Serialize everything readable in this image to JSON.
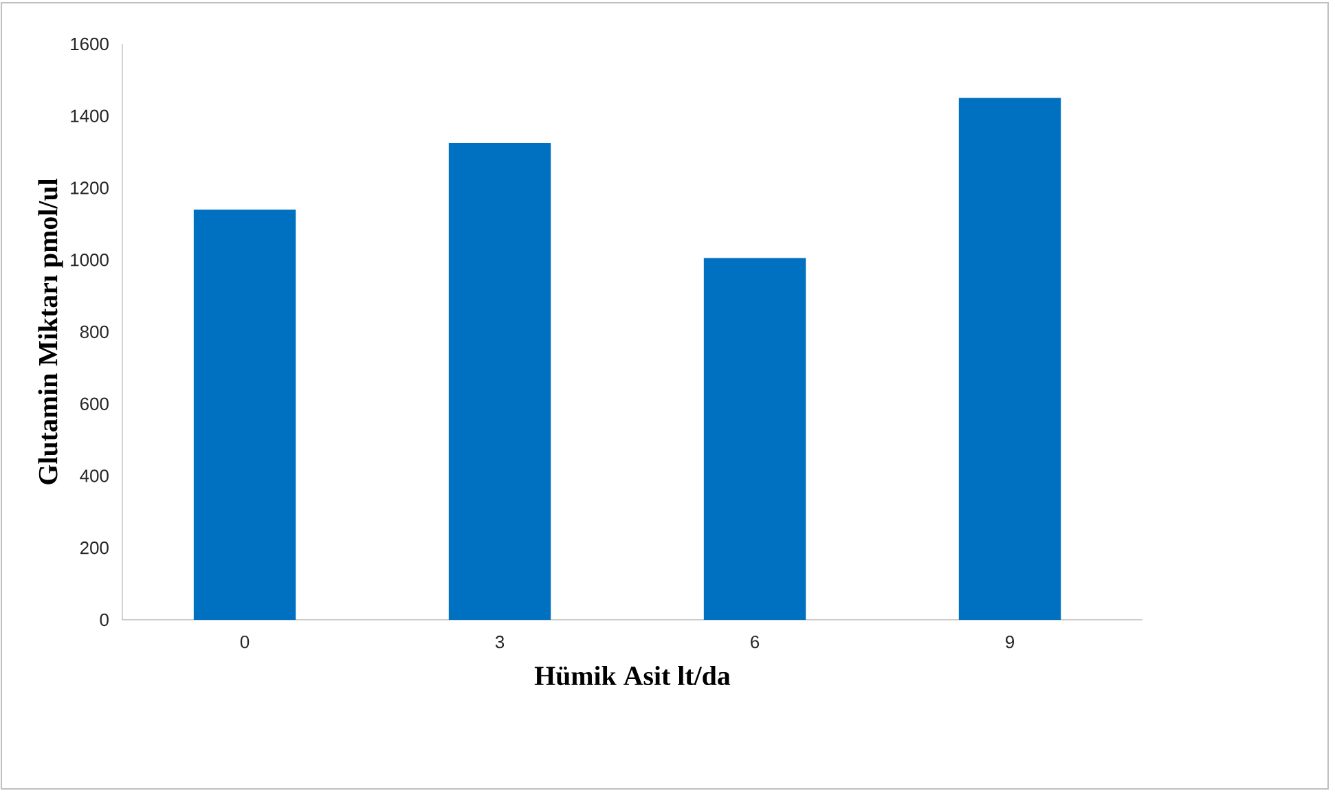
{
  "chart_data": {
    "type": "bar",
    "xlabel": "Hümik Asit lt/da",
    "ylabel": "Glutamin Miktarı pmol/ul",
    "categories": [
      "0",
      "3",
      "6",
      "9"
    ],
    "values": [
      1140,
      1325,
      1005,
      1450
    ],
    "color": "#0070c0",
    "ylim": [
      0,
      1600
    ],
    "yticks": [
      0,
      200,
      400,
      600,
      800,
      1000,
      1200,
      1400,
      1600
    ],
    "grid": false
  }
}
